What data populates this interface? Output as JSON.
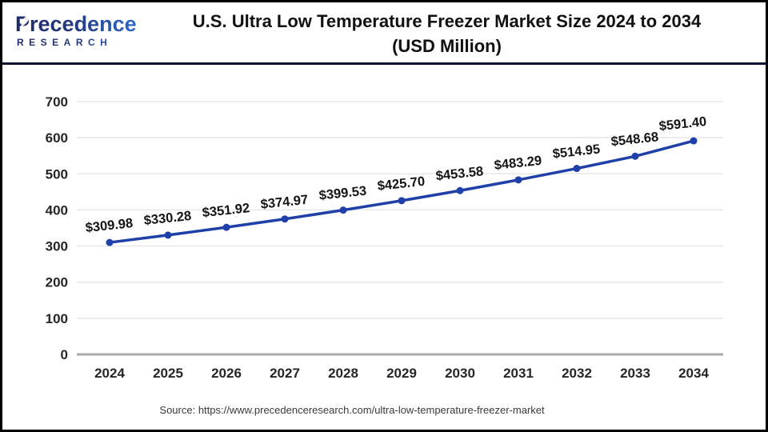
{
  "page": {
    "logo": {
      "line1": "Precedence",
      "line2": "RESEARCH"
    },
    "title_line1": "U.S. Ultra Low Temperature Freezer Market Size 2024 to 2034",
    "title_line2": "(USD Million)",
    "source": "Source: https://www.precedenceresearch.com/ultra-low-temperature-freezer-market"
  },
  "colors": {
    "line": "#1e40a8",
    "marker": "#1e40a8",
    "grid": "#e8e8e8",
    "axis_baseline": "#ababab",
    "tick_label": "#262626",
    "data_label": "#141414",
    "header_divider": "#0e1233",
    "logo_navy": "#1f2a66",
    "logo_blue": "#2f6fd0"
  },
  "chart_data": {
    "type": "line",
    "title": "U.S. Ultra Low Temperature Freezer Market Size 2024 to 2034 (USD Million)",
    "categories": [
      "2024",
      "2025",
      "2026",
      "2027",
      "2028",
      "2029",
      "2030",
      "2031",
      "2032",
      "2033",
      "2034"
    ],
    "series": [
      {
        "name": "U.S. Ultra Low Temperature Freezer Market Size (USD Million)",
        "values": [
          309.98,
          330.28,
          351.92,
          374.97,
          399.53,
          425.7,
          453.58,
          483.29,
          514.95,
          548.68,
          591.4
        ]
      }
    ],
    "value_labels": [
      "$309.98",
      "$330.28",
      "$351.92",
      "$374.97",
      "$399.53",
      "$425.70",
      "$453.58",
      "$483.29",
      "$514.95",
      "$548.68",
      "$591.40"
    ],
    "xlabel": "",
    "ylabel": "",
    "ylim": [
      0,
      700
    ],
    "yticks": [
      0,
      100,
      200,
      300,
      400,
      500,
      600,
      700
    ],
    "grid": true,
    "legend": false,
    "marker": "circle"
  }
}
